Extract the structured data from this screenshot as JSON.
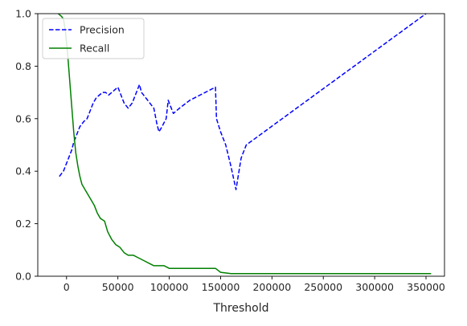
{
  "chart_data": {
    "type": "line",
    "title": "",
    "xlabel": "Threshold",
    "ylabel": "",
    "xlim": [
      -28000,
      368000
    ],
    "ylim": [
      0,
      1.0
    ],
    "xticks": [
      0,
      50000,
      100000,
      150000,
      200000,
      250000,
      300000,
      350000
    ],
    "yticks": [
      0.0,
      0.2,
      0.4,
      0.6,
      0.8,
      1.0
    ],
    "grid": false,
    "legend": {
      "position": "top-left"
    },
    "series": [
      {
        "name": "Precision",
        "color": "#0000ff",
        "style": "dashed",
        "points": [
          [
            -7000,
            0.38
          ],
          [
            -5000,
            0.39
          ],
          [
            -3000,
            0.4
          ],
          [
            -1000,
            0.42
          ],
          [
            1000,
            0.44
          ],
          [
            3000,
            0.46
          ],
          [
            5000,
            0.48
          ],
          [
            7000,
            0.51
          ],
          [
            9000,
            0.53
          ],
          [
            11000,
            0.55
          ],
          [
            13000,
            0.57
          ],
          [
            15000,
            0.58
          ],
          [
            17000,
            0.59
          ],
          [
            20000,
            0.6
          ],
          [
            23000,
            0.63
          ],
          [
            26000,
            0.66
          ],
          [
            29000,
            0.68
          ],
          [
            32000,
            0.69
          ],
          [
            35000,
            0.7
          ],
          [
            38000,
            0.7
          ],
          [
            41000,
            0.69
          ],
          [
            44000,
            0.7
          ],
          [
            47000,
            0.71
          ],
          [
            50000,
            0.72
          ],
          [
            53000,
            0.69
          ],
          [
            56000,
            0.66
          ],
          [
            60000,
            0.64
          ],
          [
            64000,
            0.66
          ],
          [
            68000,
            0.7
          ],
          [
            71000,
            0.73
          ],
          [
            73000,
            0.7
          ],
          [
            77000,
            0.68
          ],
          [
            81000,
            0.66
          ],
          [
            85000,
            0.64
          ],
          [
            88000,
            0.58
          ],
          [
            90000,
            0.55
          ],
          [
            93000,
            0.57
          ],
          [
            97000,
            0.6
          ],
          [
            99000,
            0.67
          ],
          [
            101000,
            0.65
          ],
          [
            104000,
            0.62
          ],
          [
            110000,
            0.64
          ],
          [
            120000,
            0.67
          ],
          [
            130000,
            0.69
          ],
          [
            140000,
            0.71
          ],
          [
            145000,
            0.72
          ],
          [
            146000,
            0.6
          ],
          [
            150000,
            0.55
          ],
          [
            155000,
            0.5
          ],
          [
            160000,
            0.42
          ],
          [
            165000,
            0.33
          ],
          [
            170000,
            0.45
          ],
          [
            175000,
            0.5
          ],
          [
            350000,
            1.0
          ]
        ]
      },
      {
        "name": "Recall",
        "color": "#008000",
        "style": "solid",
        "points": [
          [
            -8000,
            1.0
          ],
          [
            -5000,
            0.99
          ],
          [
            -3000,
            0.98
          ],
          [
            -1000,
            0.93
          ],
          [
            1000,
            0.85
          ],
          [
            3000,
            0.75
          ],
          [
            5000,
            0.65
          ],
          [
            7000,
            0.55
          ],
          [
            9000,
            0.47
          ],
          [
            11000,
            0.42
          ],
          [
            13000,
            0.38
          ],
          [
            15000,
            0.35
          ],
          [
            18000,
            0.33
          ],
          [
            21000,
            0.31
          ],
          [
            24000,
            0.29
          ],
          [
            27000,
            0.27
          ],
          [
            30000,
            0.24
          ],
          [
            33000,
            0.22
          ],
          [
            37000,
            0.21
          ],
          [
            40000,
            0.17
          ],
          [
            44000,
            0.14
          ],
          [
            48000,
            0.12
          ],
          [
            52000,
            0.11
          ],
          [
            56000,
            0.09
          ],
          [
            60000,
            0.08
          ],
          [
            65000,
            0.08
          ],
          [
            70000,
            0.07
          ],
          [
            75000,
            0.06
          ],
          [
            80000,
            0.05
          ],
          [
            85000,
            0.04
          ],
          [
            90000,
            0.04
          ],
          [
            95000,
            0.04
          ],
          [
            100000,
            0.03
          ],
          [
            110000,
            0.03
          ],
          [
            120000,
            0.03
          ],
          [
            130000,
            0.03
          ],
          [
            140000,
            0.03
          ],
          [
            145000,
            0.03
          ],
          [
            150000,
            0.015
          ],
          [
            160000,
            0.01
          ],
          [
            170000,
            0.01
          ],
          [
            200000,
            0.01
          ],
          [
            250000,
            0.01
          ],
          [
            300000,
            0.01
          ],
          [
            355000,
            0.01
          ]
        ]
      }
    ]
  }
}
